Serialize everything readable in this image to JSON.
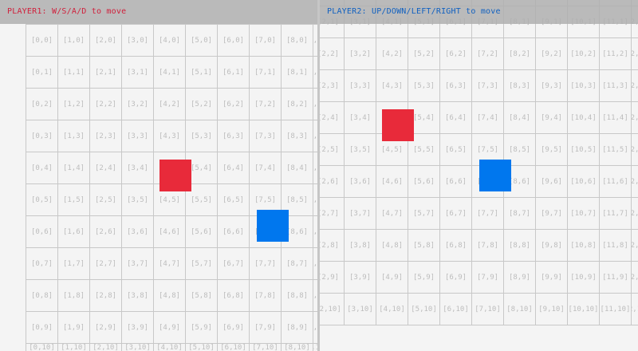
{
  "players": [
    {
      "id": "player1",
      "label": "PLAYER1: W/S/A/D to move",
      "color": "#e82a3a",
      "text_color": "#d0203c",
      "cell": [
        4,
        4
      ]
    },
    {
      "id": "player2",
      "label": "PLAYER2: UP/DOWN/LEFT/RIGHT to move",
      "color": "#0077ee",
      "text_color": "#1060c0",
      "cell": [
        7,
        6
      ]
    }
  ],
  "grid": {
    "cols": 13,
    "rows": 11,
    "label_format": "[{x},{y}]",
    "line_color": "#c8c8c8",
    "background": "#f4f4f4"
  }
}
